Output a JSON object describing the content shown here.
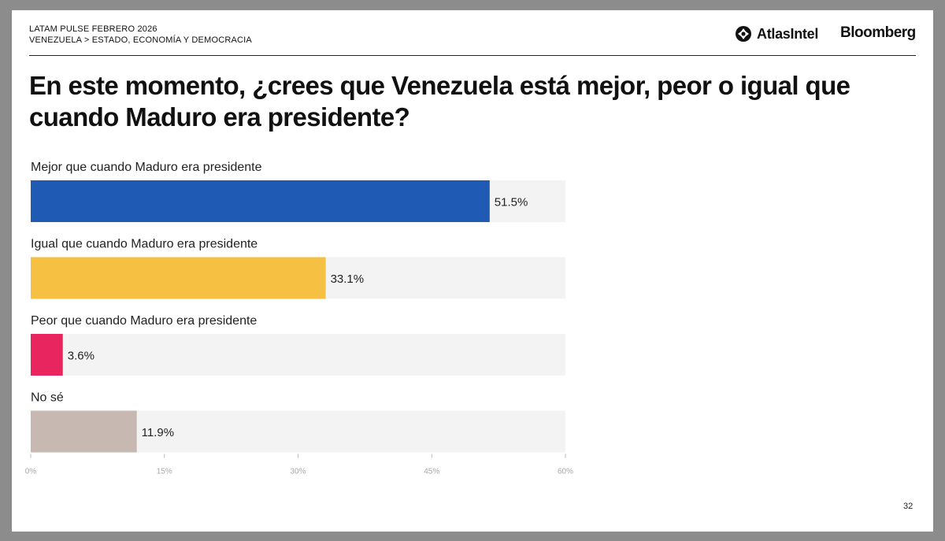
{
  "header": {
    "line1": "LATAM PULSE FEBRERO 2026",
    "line2": "VENEZUELA > ESTADO, ECONOMÍA Y DEMOCRACIA"
  },
  "logos": {
    "atlas": "AtlasIntel",
    "bloomberg": "Bloomberg"
  },
  "title": "En este momento, ¿crees que Venezuela está mejor, peor o igual que cuando Maduro era presidente?",
  "page_number": "32",
  "chart_data": {
    "type": "bar",
    "orientation": "horizontal",
    "title": "En este momento, ¿crees que Venezuela está mejor, peor o igual que cuando Maduro era presidente?",
    "categories": [
      "Mejor que cuando Maduro era presidente",
      "Igual que cuando Maduro era presidente",
      "Peor que cuando Maduro era presidente",
      "No sé"
    ],
    "values": [
      51.5,
      33.1,
      3.6,
      11.9
    ],
    "value_labels": [
      "51.5%",
      "33.1%",
      "3.6%",
      "11.9%"
    ],
    "colors": [
      "#1f5bb5",
      "#f6c142",
      "#e8255f",
      "#c7b9b1"
    ],
    "track_color": "#f3f3f3",
    "xlim": [
      0,
      60
    ],
    "xticks": [
      0,
      15,
      30,
      45,
      60
    ],
    "xtick_labels": [
      "0%",
      "15%",
      "30%",
      "45%",
      "60%"
    ],
    "grid": false,
    "legend": "none"
  }
}
